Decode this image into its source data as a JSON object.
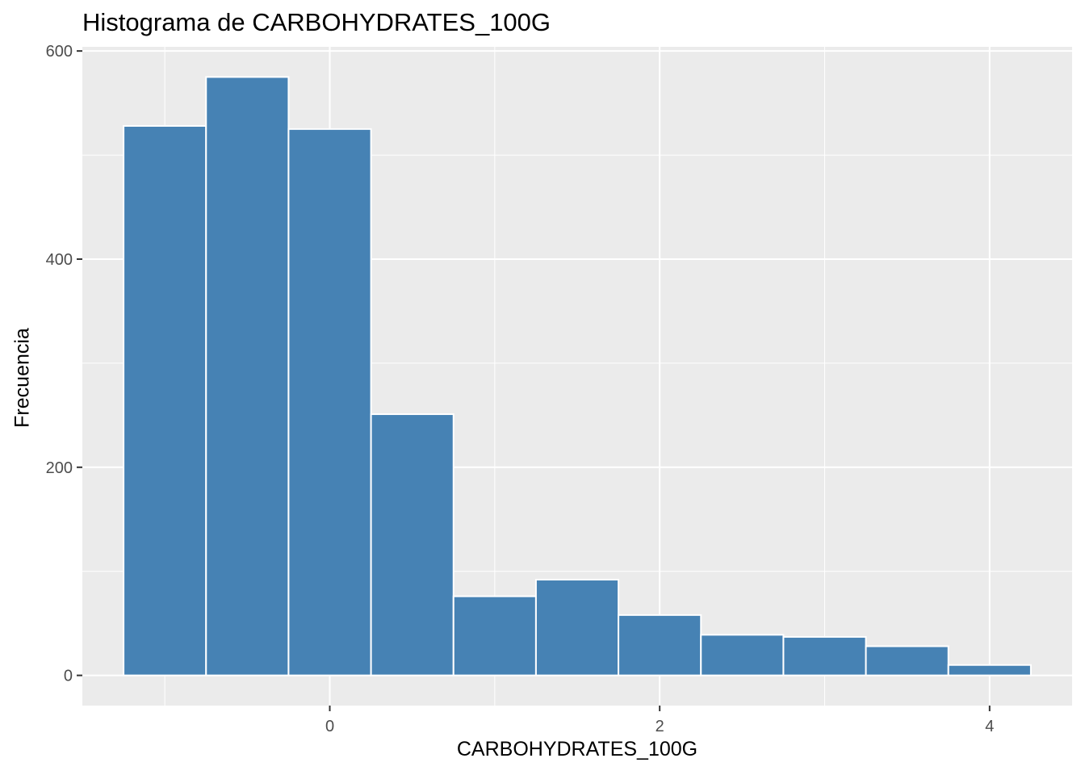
{
  "chart_data": {
    "type": "bar",
    "title": "Histograma de CARBOHYDRATES_100G",
    "xlabel": "CARBOHYDRATES_100G",
    "ylabel": "Frecuencia",
    "bin_width": 0.5,
    "bins": [
      {
        "x0": -1.25,
        "x1": -0.75,
        "count": 528
      },
      {
        "x0": -0.75,
        "x1": -0.25,
        "count": 575
      },
      {
        "x0": -0.25,
        "x1": 0.25,
        "count": 525
      },
      {
        "x0": 0.25,
        "x1": 0.75,
        "count": 251
      },
      {
        "x0": 0.75,
        "x1": 1.25,
        "count": 76
      },
      {
        "x0": 1.25,
        "x1": 1.75,
        "count": 92
      },
      {
        "x0": 1.75,
        "x1": 2.25,
        "count": 58
      },
      {
        "x0": 2.25,
        "x1": 2.75,
        "count": 39
      },
      {
        "x0": 2.75,
        "x1": 3.25,
        "count": 37
      },
      {
        "x0": 3.25,
        "x1": 3.75,
        "count": 28
      },
      {
        "x0": 3.75,
        "x1": 4.25,
        "count": 10
      }
    ],
    "xlim": [
      -1.5,
      4.5
    ],
    "ylim": [
      -29,
      604
    ],
    "x_ticks": [
      0,
      2,
      4
    ],
    "x_minor": [
      -1,
      1,
      3
    ],
    "y_ticks": [
      0,
      200,
      400,
      600
    ],
    "y_minor": [
      100,
      300,
      500
    ],
    "x_tick_labels": [
      "0",
      "2",
      "4"
    ],
    "y_tick_labels": [
      "0",
      "200",
      "400",
      "600"
    ],
    "grid": true,
    "colors": {
      "bar_fill": "#4682B4",
      "bar_edge": "#FFFFFF",
      "panel_bg": "#EBEBEB",
      "grid": "#FFFFFF",
      "tick_text": "#4D4D4D"
    }
  }
}
